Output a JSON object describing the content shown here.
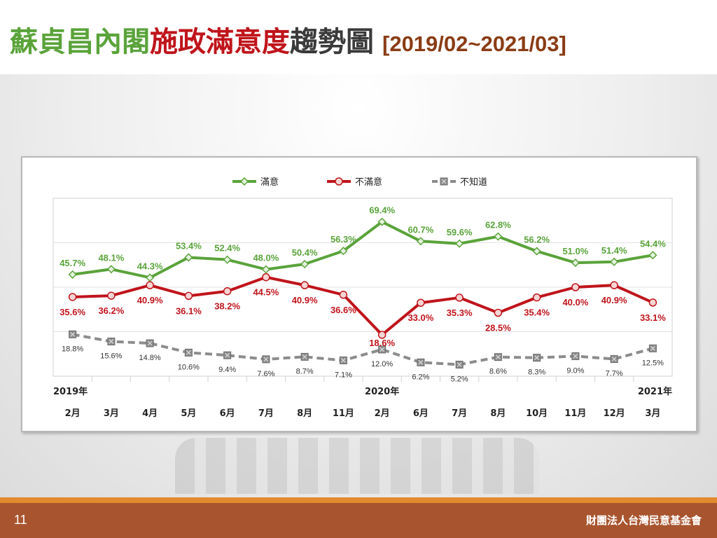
{
  "title": {
    "part1": "蘇貞昌內閣",
    "part2": "施政滿意度",
    "part3": "趨勢圖",
    "range": "[2019/02~2021/03]"
  },
  "colors": {
    "satisfied": "#5aa33a",
    "dissatisfied": "#c0141b",
    "unknown": "#8c8c8c",
    "title_green": "#5aa33a",
    "title_red": "#c0141b",
    "footer": "#a8552f",
    "footer_stripe": "#e38a2e"
  },
  "footer": {
    "page_number": "11",
    "organization": "財團法人台灣民意基金會"
  },
  "chart_data": {
    "type": "line",
    "categories": [
      "2月",
      "3月",
      "4月",
      "5月",
      "6月",
      "7月",
      "8月",
      "11月",
      "2月",
      "6月",
      "7月",
      "8月",
      "10月",
      "11月",
      "12月",
      "3月"
    ],
    "year_labels": [
      {
        "index": 0,
        "label": "2019年"
      },
      {
        "index": 8,
        "label": "2020年"
      },
      {
        "index": 15,
        "label": "2021年"
      }
    ],
    "series": [
      {
        "name": "滿意",
        "marker": "diamond",
        "values": [
          45.7,
          48.1,
          44.3,
          53.4,
          52.4,
          48.0,
          50.4,
          56.3,
          69.4,
          60.7,
          59.6,
          62.8,
          56.2,
          51.0,
          51.4,
          54.4
        ],
        "labels": [
          "45.7%",
          "48.1%",
          "44.3%",
          "53.4%",
          "52.4%",
          "48.0%",
          "50.4%",
          "56.3%",
          "69.4%",
          "60.7%",
          "59.6%",
          "62.8%",
          "56.2%",
          "51.0%",
          "51.4%",
          "54.4%"
        ]
      },
      {
        "name": "不滿意",
        "marker": "circle",
        "values": [
          35.6,
          36.2,
          40.9,
          36.1,
          38.2,
          44.5,
          40.9,
          36.6,
          18.6,
          33.0,
          35.3,
          28.5,
          35.4,
          40.0,
          40.9,
          33.1
        ],
        "labels": [
          "35.6%",
          "36.2%",
          "40.9%",
          "36.1%",
          "38.2%",
          "44.5%",
          "40.9%",
          "36.6%",
          "18.6%",
          "33.0%",
          "35.3%",
          "28.5%",
          "35.4%",
          "40.0%",
          "40.9%",
          "33.1%"
        ]
      },
      {
        "name": "不知道",
        "marker": "square-x",
        "values": [
          18.8,
          15.6,
          14.8,
          10.6,
          9.4,
          7.6,
          8.7,
          7.1,
          12.0,
          6.2,
          5.2,
          8.6,
          8.3,
          9.0,
          7.7,
          12.5
        ],
        "labels": [
          "18.8%",
          "15.6%",
          "14.8%",
          "10.6%",
          "9.4%",
          "7.6%",
          "8.7%",
          "7.1%",
          "12.0%",
          "6.2%",
          "5.2%",
          "8.6%",
          "8.3%",
          "9.0%",
          "7.7%",
          "12.5%"
        ]
      }
    ],
    "ylim": [
      0,
      80
    ],
    "gridlines": [
      20,
      40,
      60
    ],
    "legend_position": "top-left",
    "grid": true
  }
}
